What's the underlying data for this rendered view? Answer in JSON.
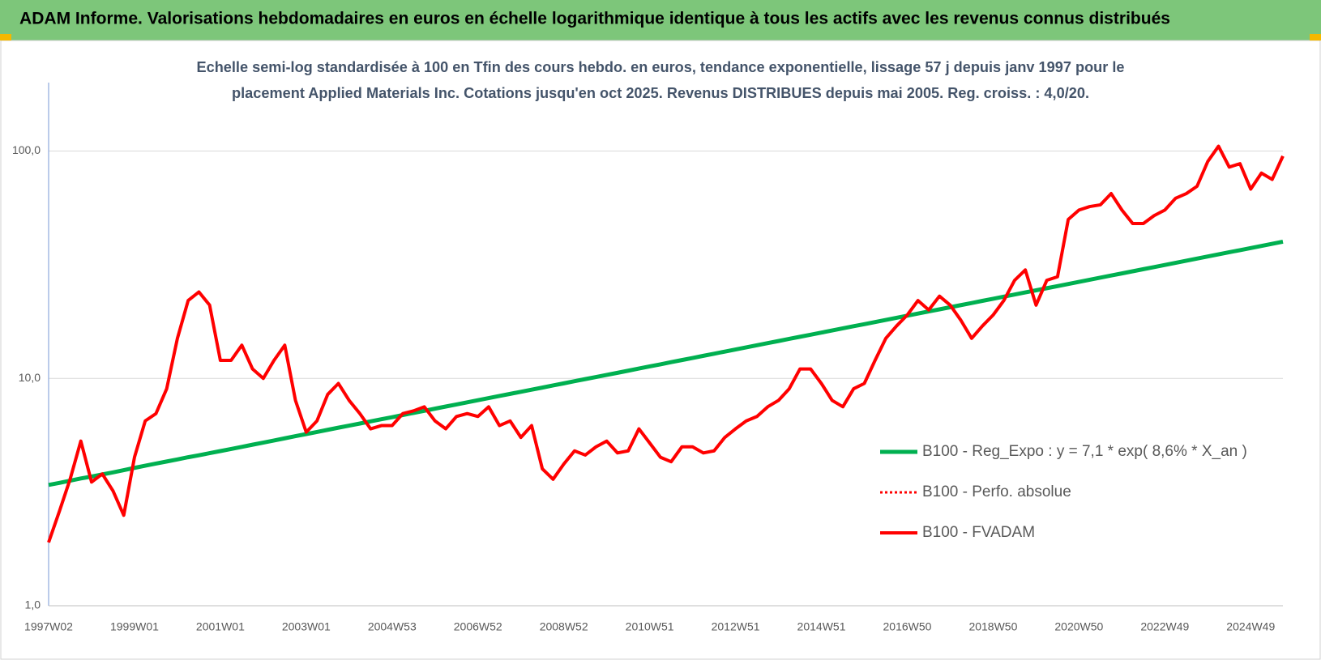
{
  "chart_data": {
    "type": "line",
    "title": "ADAM Informe. Valorisations hebdomadaires en euros en échelle logarithmique identique à tous les actifs avec les revenus connus distribués",
    "subtitle": [
      "Echelle semi-log standardisée à 100 en Tfin des cours hebdo. en euros, tendance exponentielle, lissage 57 j depuis janv 1997 pour le",
      "placement Applied Materials Inc.  Cotations jusqu'en oct 2025. Revenus DISTRIBUES depuis mai 2005.  Reg. croiss. : 4,0/20."
    ],
    "log_scale": true,
    "grid": true,
    "legend": "right",
    "ylim": [
      1,
      200
    ],
    "yticks": [
      {
        "value": 1,
        "label": "1,0"
      },
      {
        "value": 10,
        "label": "10,0"
      },
      {
        "value": 100,
        "label": "100,0"
      }
    ],
    "categories": [
      "1997W02",
      null,
      null,
      null,
      null,
      null,
      null,
      null,
      "1999W01",
      null,
      null,
      null,
      null,
      null,
      null,
      null,
      "2001W01",
      null,
      null,
      null,
      null,
      null,
      null,
      null,
      "2003W01",
      null,
      null,
      null,
      null,
      null,
      null,
      null,
      "2004W53",
      null,
      null,
      null,
      null,
      null,
      null,
      null,
      "2006W52",
      null,
      null,
      null,
      null,
      null,
      null,
      null,
      "2008W52",
      null,
      null,
      null,
      null,
      null,
      null,
      null,
      "2010W51",
      null,
      null,
      null,
      null,
      null,
      null,
      null,
      "2012W51",
      null,
      null,
      null,
      null,
      null,
      null,
      null,
      "2014W51",
      null,
      null,
      null,
      null,
      null,
      null,
      null,
      "2016W50",
      null,
      null,
      null,
      null,
      null,
      null,
      null,
      "2018W50",
      null,
      null,
      null,
      null,
      null,
      null,
      null,
      "2020W50",
      null,
      null,
      null,
      null,
      null,
      null,
      null,
      "2022W49",
      null,
      null,
      null,
      null,
      null,
      null,
      null,
      "2024W49",
      null,
      null,
      null
    ],
    "series": [
      {
        "name": "B100 - Reg_Expo : y = 7,1 * exp( 8,6% *  X_an )",
        "color": "#00b050",
        "style": "solid",
        "width": 5,
        "values": [
          3.4,
          3.47,
          3.55,
          3.63,
          3.7,
          3.78,
          3.86,
          3.95,
          4.04,
          4.13,
          4.22,
          4.31,
          4.4,
          4.5,
          4.59,
          4.69,
          4.79,
          4.89,
          5.0,
          5.11,
          5.22,
          5.33,
          5.45,
          5.57,
          5.69,
          5.81,
          5.94,
          6.07,
          6.2,
          6.33,
          6.47,
          6.61,
          6.75,
          6.9,
          7.05,
          7.2,
          7.36,
          7.52,
          7.68,
          7.85,
          8.02,
          8.19,
          8.37,
          8.55,
          8.73,
          8.92,
          9.11,
          9.31,
          9.51,
          9.72,
          9.93,
          10.14,
          10.36,
          10.58,
          10.81,
          11.05,
          11.29,
          11.53,
          11.79,
          12.04,
          12.3,
          12.57,
          12.84,
          13.12,
          13.4,
          13.69,
          13.99,
          14.29,
          14.6,
          14.92,
          15.24,
          15.57,
          15.9,
          16.25,
          16.6,
          16.96,
          17.32,
          17.7,
          18.08,
          18.47,
          18.87,
          19.28,
          19.7,
          20.12,
          20.56,
          21.01,
          21.46,
          21.93,
          22.4,
          22.89,
          23.38,
          23.89,
          24.4,
          24.93,
          25.47,
          26.02,
          26.58,
          27.16,
          27.75,
          28.35,
          28.96,
          29.59,
          30.23,
          30.88,
          31.55,
          32.24,
          32.93,
          33.65,
          34.37,
          35.12,
          35.88,
          36.65,
          37.44,
          38.25,
          39.08,
          39.93
        ]
      },
      {
        "name": "B100 - Perfo. absolue",
        "color": "#ff0000",
        "style": "dotted",
        "width": 3,
        "values": [
          1.9,
          2.6,
          3.6,
          5.3,
          3.5,
          3.8,
          3.2,
          2.5,
          4.5,
          6.5,
          7.0,
          9.0,
          15,
          22,
          24,
          21,
          12,
          12,
          14,
          11,
          10,
          12,
          14,
          8,
          5.8,
          6.5,
          8.5,
          9.5,
          8.0,
          7.0,
          6.0,
          6.2,
          6.2,
          7.0,
          7.2,
          7.5,
          6.5,
          6.0,
          6.8,
          7.0,
          6.8,
          7.5,
          6.2,
          6.5,
          5.5,
          6.2,
          4.0,
          3.6,
          4.2,
          4.8,
          4.6,
          5.0,
          5.3,
          4.7,
          4.8,
          6.0,
          5.2,
          4.5,
          4.3,
          5.0,
          5.0,
          4.7,
          4.8,
          5.5,
          6.0,
          6.5,
          6.8,
          7.5,
          8.0,
          9.0,
          11,
          11,
          9.5,
          8.0,
          7.5,
          9.0,
          9.5,
          12,
          15,
          17,
          19,
          22,
          20,
          23,
          21,
          18,
          15,
          17,
          19,
          22,
          27,
          30,
          21,
          27,
          28,
          50,
          55,
          57,
          58,
          65,
          55,
          48,
          48,
          52,
          55,
          62,
          65,
          70,
          90,
          105,
          85,
          88,
          68,
          80,
          75,
          95
        ]
      },
      {
        "name": "B100 - FVADAM",
        "color": "#ff0000",
        "style": "solid",
        "width": 4,
        "values": [
          1.9,
          2.6,
          3.6,
          5.3,
          3.5,
          3.8,
          3.2,
          2.5,
          4.5,
          6.5,
          7.0,
          9.0,
          15,
          22,
          24,
          21,
          12,
          12,
          14,
          11,
          10,
          12,
          14,
          8,
          5.8,
          6.5,
          8.5,
          9.5,
          8.0,
          7.0,
          6.0,
          6.2,
          6.2,
          7.0,
          7.2,
          7.5,
          6.5,
          6.0,
          6.8,
          7.0,
          6.8,
          7.5,
          6.2,
          6.5,
          5.5,
          6.2,
          4.0,
          3.6,
          4.2,
          4.8,
          4.6,
          5.0,
          5.3,
          4.7,
          4.8,
          6.0,
          5.2,
          4.5,
          4.3,
          5.0,
          5.0,
          4.7,
          4.8,
          5.5,
          6.0,
          6.5,
          6.8,
          7.5,
          8.0,
          9.0,
          11,
          11,
          9.5,
          8.0,
          7.5,
          9.0,
          9.5,
          12,
          15,
          17,
          19,
          22,
          20,
          23,
          21,
          18,
          15,
          17,
          19,
          22,
          27,
          30,
          21,
          27,
          28,
          50,
          55,
          57,
          58,
          65,
          55,
          48,
          48,
          52,
          55,
          62,
          65,
          70,
          90,
          105,
          85,
          88,
          68,
          80,
          75,
          95
        ]
      }
    ]
  }
}
